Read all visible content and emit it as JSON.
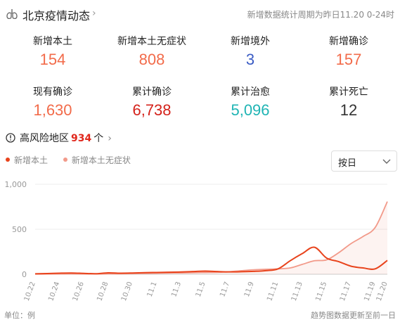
{
  "header": {
    "title": "北京疫情动态",
    "period": "新增数据统计周期为昨日11.20 0-24时"
  },
  "stats": [
    {
      "label": "新增本土",
      "value": "154",
      "color": "#f26b4a"
    },
    {
      "label": "新增本土无症状",
      "value": "808",
      "color": "#f26b4a"
    },
    {
      "label": "新增境外",
      "value": "3",
      "color": "#3b5cc4"
    },
    {
      "label": "新增确诊",
      "value": "157",
      "color": "#f26b4a"
    },
    {
      "label": "现有确诊",
      "value": "1,630",
      "color": "#f26b4a"
    },
    {
      "label": "累计确诊",
      "value": "6,738",
      "color": "#d4221b"
    },
    {
      "label": "累计治愈",
      "value": "5,096",
      "color": "#1fb4b4"
    },
    {
      "label": "累计死亡",
      "value": "12",
      "color": "#333333"
    }
  ],
  "risk": {
    "label": "高风险地区",
    "count": "934",
    "unit": "个"
  },
  "select": {
    "value": "按日"
  },
  "footer": {
    "unit": "单位：例",
    "note": "趋势图数据更新至前一日"
  },
  "chart_data": {
    "type": "line",
    "x": [
      "10.22",
      "10.23",
      "10.24",
      "10.25",
      "10.26",
      "10.27",
      "10.28",
      "10.29",
      "10.30",
      "10.31",
      "11.1",
      "11.2",
      "11.3",
      "11.4",
      "11.5",
      "11.6",
      "11.7",
      "11.8",
      "11.9",
      "11.10",
      "11.11",
      "11.12",
      "11.13",
      "11.14",
      "11.15",
      "11.16",
      "11.17",
      "11.18",
      "11.19",
      "11.20"
    ],
    "xtick_labels": [
      "10.22",
      "10.24",
      "10.26",
      "10.28",
      "10.30",
      "11.1",
      "11.3",
      "11.5",
      "11.7",
      "11.9",
      "11.11",
      "11.13",
      "11.15",
      "11.17",
      "11.19",
      "11.20"
    ],
    "series": [
      {
        "name": "新增本土",
        "color": "#e8431c",
        "values": [
          5,
          8,
          12,
          14,
          10,
          6,
          16,
          12,
          14,
          18,
          20,
          22,
          25,
          30,
          35,
          30,
          26,
          28,
          32,
          40,
          60,
          150,
          230,
          300,
          180,
          140,
          90,
          70,
          60,
          154
        ]
      },
      {
        "name": "新增本土无症状",
        "color": "#f29a8a",
        "values": [
          2,
          3,
          4,
          5,
          4,
          3,
          5,
          6,
          8,
          10,
          12,
          14,
          15,
          18,
          20,
          22,
          28,
          40,
          50,
          55,
          60,
          70,
          110,
          150,
          160,
          240,
          340,
          420,
          520,
          808
        ]
      }
    ],
    "ylim": [
      0,
      1000
    ],
    "yticks": [
      "0",
      "500",
      "1,000"
    ],
    "grid": true
  }
}
